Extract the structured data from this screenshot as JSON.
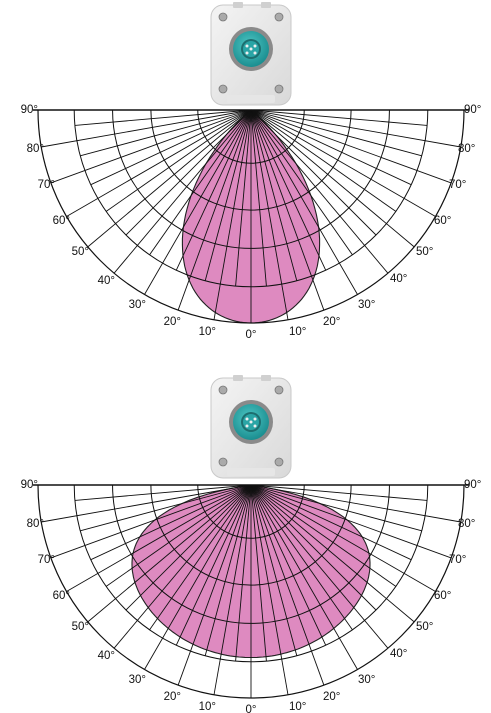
{
  "diagrams": [
    {
      "device": "sensor-connector-module",
      "lobe_color": "#de8ac0",
      "lobe_profile": "narrow",
      "labels_left": [
        "90°",
        "80°",
        "70°",
        "60°",
        "50°",
        "40°",
        "30°",
        "20°",
        "10°"
      ],
      "label_center": "0°",
      "labels_right": [
        "10°",
        "20°",
        "30°",
        "40°",
        "50°",
        "60°",
        "70°",
        "80°",
        "90°"
      ]
    },
    {
      "device": "sensor-connector-module",
      "lobe_color": "#de8ac0",
      "lobe_profile": "wide",
      "labels_left": [
        "90°",
        "80°",
        "70°",
        "60°",
        "50°",
        "40°",
        "30°",
        "20°",
        "10°"
      ],
      "label_center": "0°",
      "labels_right": [
        "10°",
        "20°",
        "30°",
        "40°",
        "50°",
        "60°",
        "70°",
        "80°",
        "90°"
      ]
    }
  ]
}
